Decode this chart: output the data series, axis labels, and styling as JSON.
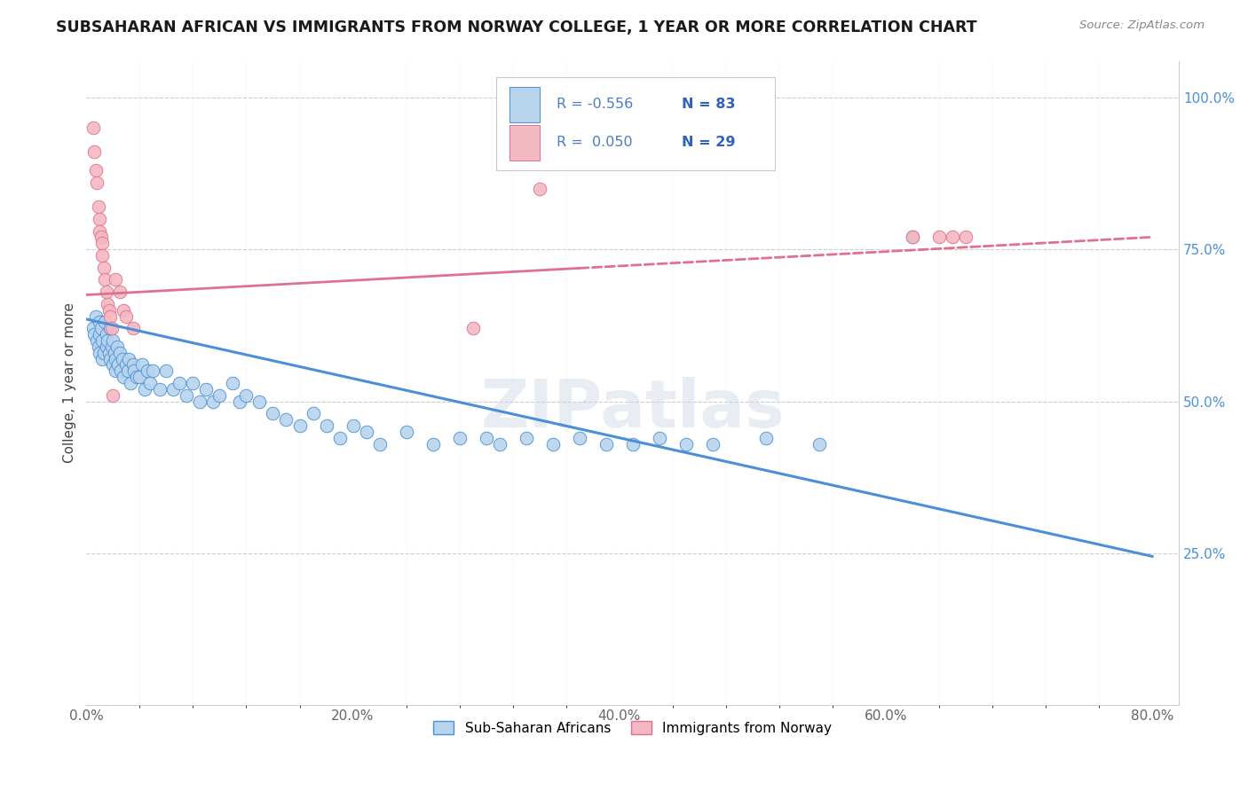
{
  "title": "SUBSAHARAN AFRICAN VS IMMIGRANTS FROM NORWAY COLLEGE, 1 YEAR OR MORE CORRELATION CHART",
  "source": "Source: ZipAtlas.com",
  "ylabel": "College, 1 year or more",
  "x_tick_labels": [
    "0.0%",
    "",
    "",
    "",
    "",
    "20.0%",
    "",
    "",
    "",
    "",
    "40.0%",
    "",
    "",
    "",
    "",
    "60.0%",
    "",
    "",
    "",
    "",
    "80.0%"
  ],
  "x_tick_values": [
    0.0,
    0.04,
    0.08,
    0.12,
    0.16,
    0.2,
    0.24,
    0.28,
    0.32,
    0.36,
    0.4,
    0.44,
    0.48,
    0.52,
    0.56,
    0.6,
    0.64,
    0.68,
    0.72,
    0.76,
    0.8
  ],
  "y_tick_labels_right": [
    "25.0%",
    "50.0%",
    "75.0%",
    "100.0%"
  ],
  "y_tick_values_right": [
    0.25,
    0.5,
    0.75,
    1.0
  ],
  "xlim": [
    0.0,
    0.82
  ],
  "ylim": [
    0.0,
    1.06
  ],
  "color_blue": "#b8d4ed",
  "color_blue_line": "#4a90d9",
  "color_pink": "#f4b8c1",
  "color_pink_line": "#e07090",
  "color_legend_r": "#4a7cc7",
  "color_legend_n": "#3060c0",
  "background_color": "#ffffff",
  "grid_color": "#cccccc",
  "blue_line_y_start": 0.635,
  "blue_line_y_end": 0.245,
  "pink_line_y_start": 0.675,
  "pink_line_y_solid_end_x": 0.37,
  "pink_line_y_end": 0.77,
  "blue_scatter_x": [
    0.005,
    0.006,
    0.007,
    0.008,
    0.009,
    0.01,
    0.01,
    0.01,
    0.011,
    0.012,
    0.012,
    0.013,
    0.014,
    0.015,
    0.015,
    0.016,
    0.017,
    0.018,
    0.018,
    0.019,
    0.02,
    0.02,
    0.021,
    0.022,
    0.022,
    0.023,
    0.024,
    0.025,
    0.026,
    0.027,
    0.028,
    0.03,
    0.031,
    0.032,
    0.033,
    0.035,
    0.036,
    0.038,
    0.04,
    0.042,
    0.044,
    0.046,
    0.048,
    0.05,
    0.055,
    0.06,
    0.065,
    0.07,
    0.075,
    0.08,
    0.085,
    0.09,
    0.095,
    0.1,
    0.11,
    0.115,
    0.12,
    0.13,
    0.14,
    0.15,
    0.16,
    0.17,
    0.18,
    0.19,
    0.2,
    0.21,
    0.22,
    0.24,
    0.26,
    0.28,
    0.3,
    0.31,
    0.33,
    0.35,
    0.37,
    0.39,
    0.41,
    0.43,
    0.45,
    0.47,
    0.51,
    0.55,
    0.62
  ],
  "blue_scatter_y": [
    0.62,
    0.61,
    0.64,
    0.6,
    0.59,
    0.63,
    0.61,
    0.58,
    0.62,
    0.6,
    0.57,
    0.58,
    0.63,
    0.61,
    0.59,
    0.6,
    0.58,
    0.62,
    0.57,
    0.59,
    0.6,
    0.56,
    0.58,
    0.55,
    0.57,
    0.59,
    0.56,
    0.58,
    0.55,
    0.57,
    0.54,
    0.56,
    0.55,
    0.57,
    0.53,
    0.56,
    0.55,
    0.54,
    0.54,
    0.56,
    0.52,
    0.55,
    0.53,
    0.55,
    0.52,
    0.55,
    0.52,
    0.53,
    0.51,
    0.53,
    0.5,
    0.52,
    0.5,
    0.51,
    0.53,
    0.5,
    0.51,
    0.5,
    0.48,
    0.47,
    0.46,
    0.48,
    0.46,
    0.44,
    0.46,
    0.45,
    0.43,
    0.45,
    0.43,
    0.44,
    0.44,
    0.43,
    0.44,
    0.43,
    0.44,
    0.43,
    0.43,
    0.44,
    0.43,
    0.43,
    0.44,
    0.43,
    0.77
  ],
  "pink_scatter_x": [
    0.005,
    0.006,
    0.007,
    0.008,
    0.009,
    0.01,
    0.01,
    0.011,
    0.012,
    0.012,
    0.013,
    0.014,
    0.015,
    0.016,
    0.017,
    0.018,
    0.019,
    0.02,
    0.022,
    0.025,
    0.028,
    0.03,
    0.035,
    0.29,
    0.34,
    0.62,
    0.64,
    0.65,
    0.66
  ],
  "pink_scatter_y": [
    0.95,
    0.91,
    0.88,
    0.86,
    0.82,
    0.8,
    0.78,
    0.77,
    0.76,
    0.74,
    0.72,
    0.7,
    0.68,
    0.66,
    0.65,
    0.64,
    0.62,
    0.51,
    0.7,
    0.68,
    0.65,
    0.64,
    0.62,
    0.62,
    0.85,
    0.77,
    0.77,
    0.77,
    0.77
  ],
  "watermark": "ZIPatlas"
}
